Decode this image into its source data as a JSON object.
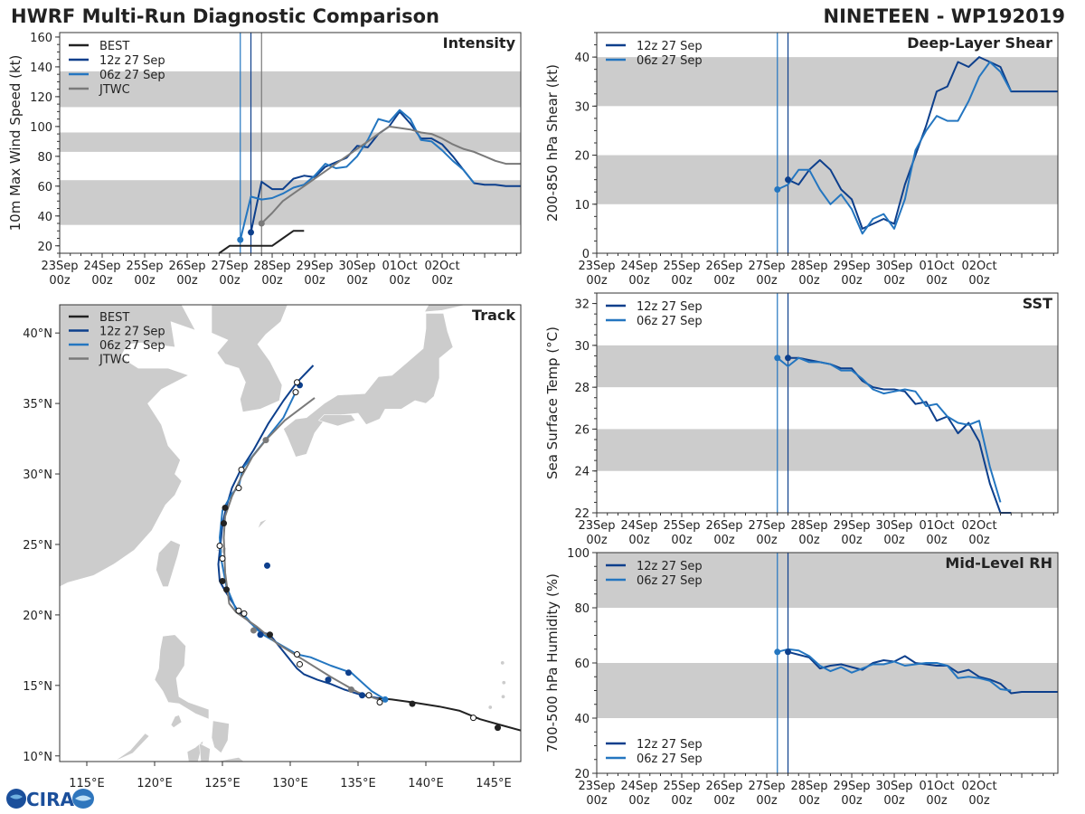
{
  "header": {
    "title_left": "HWRF Multi-Run Diagnostic Comparison",
    "title_right": "NINETEEN - WP192019"
  },
  "logo": {
    "text": "CIRA"
  },
  "colors": {
    "best": "#222222",
    "run12": "#0d3f8c",
    "run06": "#2476c0",
    "jtwc": "#7a7a7a",
    "band": "#cccccc",
    "land": "#cccccc"
  },
  "time_axis": {
    "tick_labels": [
      [
        "23Sep",
        "00z"
      ],
      [
        "24Sep",
        "00z"
      ],
      [
        "25Sep",
        "00z"
      ],
      [
        "26Sep",
        "00z"
      ],
      [
        "27Sep",
        "00z"
      ],
      [
        "28Sep",
        "00z"
      ],
      [
        "29Sep",
        "00z"
      ],
      [
        "30Sep",
        "00z"
      ],
      [
        "01Oct",
        "00z"
      ],
      [
        "02Oct",
        "00z"
      ]
    ],
    "range_days": [
      0,
      10.85
    ],
    "init_lines": {
      "run06": 4.25,
      "run12": 4.5,
      "jtwc": 4.75
    }
  },
  "chart_data": [
    {
      "id": "intensity",
      "type": "line",
      "title": "Intensity",
      "ylabel": "10m Max Wind Speed (kt)",
      "ylim": [
        15,
        163
      ],
      "yticks": [
        20,
        40,
        60,
        80,
        100,
        120,
        140,
        160
      ],
      "bands": [
        [
          34,
          64
        ],
        [
          83,
          96
        ],
        [
          113,
          137
        ]
      ],
      "legend": [
        "BEST",
        "12z 27 Sep",
        "06z 27 Sep",
        "JTWC"
      ],
      "series": [
        {
          "name": "BEST",
          "color": "best",
          "x": [
            3.75,
            4.0,
            4.25,
            4.5,
            4.75,
            5.0,
            5.25,
            5.5,
            5.75
          ],
          "y": [
            15,
            20,
            20,
            20,
            20,
            20,
            25,
            30,
            30
          ]
        },
        {
          "name": "12z 27 Sep",
          "color": "run12",
          "x": [
            4.5,
            4.75,
            5.0,
            5.25,
            5.5,
            5.75,
            6.0,
            6.25,
            6.5,
            6.75,
            7.0,
            7.25,
            7.5,
            7.75,
            8.0,
            8.25,
            8.5,
            8.75,
            9.0,
            9.25,
            9.5,
            9.75,
            10.0,
            10.25,
            10.5,
            10.75,
            10.85
          ],
          "y": [
            29,
            63,
            58,
            58,
            65,
            67,
            66,
            73,
            76,
            79,
            87,
            86,
            95,
            100,
            110,
            102,
            92,
            92,
            88,
            80,
            71,
            62,
            61,
            61,
            60,
            60,
            60
          ]
        },
        {
          "name": "06z 27 Sep",
          "color": "run06",
          "x": [
            4.25,
            4.5,
            4.75,
            5.0,
            5.25,
            5.5,
            5.75,
            6.0,
            6.25,
            6.5,
            6.75,
            7.0,
            7.25,
            7.5,
            7.75,
            8.0,
            8.25,
            8.5,
            8.75,
            9.0,
            9.25,
            9.5,
            9.75
          ],
          "y": [
            24,
            53,
            51,
            52,
            55,
            59,
            61,
            67,
            75,
            72,
            73,
            80,
            91,
            105,
            103,
            111,
            105,
            91,
            90,
            84,
            77,
            71,
            62
          ]
        },
        {
          "name": "JTWC",
          "color": "jtwc",
          "x": [
            4.75,
            5.0,
            5.25,
            5.5,
            5.75,
            6.0,
            6.25,
            6.5,
            6.75,
            7.0,
            7.25,
            7.5,
            7.75,
            8.0,
            8.25,
            8.5,
            8.75,
            9.0,
            9.25,
            9.5,
            9.75,
            10.0,
            10.25,
            10.5,
            10.85
          ],
          "y": [
            35,
            42,
            50,
            55,
            60,
            65,
            70,
            75,
            80,
            85,
            90,
            95,
            100,
            99,
            98,
            96,
            95,
            92,
            88,
            85,
            83,
            80,
            77,
            75,
            75
          ]
        }
      ],
      "markers": [
        {
          "series": "run12",
          "x": 4.5,
          "y": 29
        },
        {
          "series": "run06",
          "x": 4.25,
          "y": 24
        },
        {
          "series": "jtwc",
          "x": 4.75,
          "y": 35
        }
      ]
    },
    {
      "id": "shear",
      "type": "line",
      "title": "Deep-Layer Shear",
      "ylabel": "200-850 hPa Shear (kt)",
      "ylim": [
        0,
        45
      ],
      "yticks": [
        0,
        10,
        20,
        30,
        40
      ],
      "bands": [
        [
          10,
          20
        ],
        [
          30,
          40
        ]
      ],
      "legend": [
        "12z 27 Sep",
        "06z 27 Sep"
      ],
      "series": [
        {
          "name": "12z 27 Sep",
          "color": "run12",
          "x": [
            4.5,
            4.75,
            5.0,
            5.25,
            5.5,
            5.75,
            6.0,
            6.25,
            6.5,
            6.75,
            7.0,
            7.25,
            7.5,
            7.75,
            8.0,
            8.25,
            8.5,
            8.75,
            9.0,
            9.25,
            9.5,
            9.75,
            10.0,
            10.25,
            10.5,
            10.75,
            10.85
          ],
          "y": [
            15,
            14,
            17,
            19,
            17,
            13,
            11,
            5,
            6,
            7,
            6,
            14,
            20,
            26,
            33,
            34,
            39,
            38,
            40,
            39,
            38,
            33,
            33,
            33,
            33,
            33,
            33
          ]
        },
        {
          "name": "06z 27 Sep",
          "color": "run06",
          "x": [
            4.25,
            4.5,
            4.75,
            5.0,
            5.25,
            5.5,
            5.75,
            6.0,
            6.25,
            6.5,
            6.75,
            7.0,
            7.25,
            7.5,
            7.75,
            8.0,
            8.25,
            8.5,
            8.75,
            9.0,
            9.25,
            9.5,
            9.75
          ],
          "y": [
            13,
            14,
            17,
            17,
            13,
            10,
            12,
            9,
            4,
            7,
            8,
            5,
            11,
            21,
            25,
            28,
            27,
            27,
            31,
            36,
            39,
            37,
            33
          ]
        }
      ],
      "markers": [
        {
          "series": "run12",
          "x": 4.5,
          "y": 15
        },
        {
          "series": "run06",
          "x": 4.25,
          "y": 13
        }
      ]
    },
    {
      "id": "sst",
      "type": "line",
      "title": "SST",
      "ylabel": "Sea Surface Temp (°C)",
      "ylim": [
        22,
        32.5
      ],
      "yticks": [
        22,
        24,
        26,
        28,
        30,
        32
      ],
      "bands": [
        [
          24,
          26
        ],
        [
          28,
          30
        ]
      ],
      "legend": [
        "12z 27 Sep",
        "06z 27 Sep"
      ],
      "series": [
        {
          "name": "12z 27 Sep",
          "color": "run12",
          "x": [
            4.5,
            4.75,
            5.0,
            5.25,
            5.5,
            5.75,
            6.0,
            6.25,
            6.5,
            6.75,
            7.0,
            7.25,
            7.5,
            7.75,
            8.0,
            8.25,
            8.5,
            8.75,
            9.0,
            9.25,
            9.5,
            9.75
          ],
          "y": [
            29.4,
            29.4,
            29.3,
            29.2,
            29.1,
            28.9,
            28.9,
            28.3,
            28.0,
            27.9,
            27.9,
            27.8,
            27.2,
            27.3,
            26.4,
            26.6,
            25.8,
            26.3,
            25.4,
            23.4,
            21.8,
            21.8
          ]
        },
        {
          "name": "06z 27 Sep",
          "color": "run06",
          "x": [
            4.25,
            4.5,
            4.75,
            5.0,
            5.25,
            5.5,
            5.75,
            6.0,
            6.25,
            6.5,
            6.75,
            7.0,
            7.25,
            7.5,
            7.75,
            8.0,
            8.25,
            8.5,
            8.75,
            9.0,
            9.25,
            9.5
          ],
          "y": [
            29.4,
            29.0,
            29.4,
            29.2,
            29.2,
            29.1,
            28.8,
            28.8,
            28.4,
            27.9,
            27.7,
            27.8,
            27.9,
            27.8,
            27.1,
            27.2,
            26.6,
            26.3,
            26.2,
            26.4,
            24.2,
            22.5
          ]
        }
      ],
      "markers": [
        {
          "series": "run12",
          "x": 4.5,
          "y": 29.4
        },
        {
          "series": "run06",
          "x": 4.25,
          "y": 29.4
        }
      ]
    },
    {
      "id": "rh",
      "type": "line",
      "title": "Mid-Level RH",
      "ylabel": "700-500 hPa Humidity (%)",
      "ylim": [
        20,
        100
      ],
      "yticks": [
        20,
        40,
        60,
        80,
        100
      ],
      "bands": [
        [
          40,
          60
        ],
        [
          80,
          100
        ]
      ],
      "legend": [
        "12z 27 Sep",
        "06z 27 Sep"
      ],
      "series": [
        {
          "name": "12z 27 Sep",
          "color": "run12",
          "x": [
            4.5,
            4.75,
            5.0,
            5.25,
            5.5,
            5.75,
            6.0,
            6.25,
            6.5,
            6.75,
            7.0,
            7.25,
            7.5,
            7.75,
            8.0,
            8.25,
            8.5,
            8.75,
            9.0,
            9.25,
            9.5,
            9.75,
            10.0,
            10.25,
            10.5,
            10.75,
            10.85
          ],
          "y": [
            64,
            63,
            62,
            58,
            59,
            59.5,
            58.5,
            57.5,
            60,
            61,
            60.5,
            62.5,
            60,
            59.5,
            59,
            59,
            56.5,
            57.5,
            55,
            54,
            52.5,
            49,
            49.5,
            49.5,
            49.5,
            49.5,
            49.5
          ]
        },
        {
          "name": "06z 27 Sep",
          "color": "run06",
          "x": [
            4.25,
            4.5,
            4.75,
            5.0,
            5.25,
            5.5,
            5.75,
            6.0,
            6.25,
            6.5,
            6.75,
            7.0,
            7.25,
            7.5,
            7.75,
            8.0,
            8.25,
            8.5,
            8.75,
            9.0,
            9.25,
            9.5,
            9.75
          ],
          "y": [
            64,
            65,
            64.5,
            62.5,
            59,
            57,
            58.5,
            56.5,
            58,
            59.5,
            59.5,
            60.5,
            59,
            59.5,
            60,
            60,
            59,
            54.5,
            55,
            54.5,
            53.5,
            50.5,
            50
          ]
        }
      ],
      "markers": [
        {
          "series": "run12",
          "x": 4.5,
          "y": 64
        },
        {
          "series": "run06",
          "x": 4.25,
          "y": 64
        }
      ]
    },
    {
      "id": "track",
      "type": "scatter",
      "title": "Track",
      "xlim": [
        113,
        147
      ],
      "ylim": [
        9.6,
        42
      ],
      "xtick_labels": [
        [
          115,
          "115°E"
        ],
        [
          120,
          "120°E"
        ],
        [
          125,
          "125°E"
        ],
        [
          130,
          "130°E"
        ],
        [
          135,
          "135°E"
        ],
        [
          140,
          "140°E"
        ],
        [
          145,
          "145°E"
        ]
      ],
      "ytick_labels": [
        [
          10,
          "10°N"
        ],
        [
          15,
          "15°N"
        ],
        [
          20,
          "20°N"
        ],
        [
          25,
          "25°N"
        ],
        [
          30,
          "30°N"
        ],
        [
          35,
          "35°N"
        ],
        [
          40,
          "40°N"
        ]
      ],
      "legend": [
        "BEST",
        "12z 27 Sep",
        "06z 27 Sep",
        "JTWC"
      ],
      "series": [
        {
          "name": "BEST",
          "color": "best",
          "lon": [
            147,
            145.5,
            144,
            142.5,
            141,
            139,
            137.5,
            136.5
          ],
          "lat": [
            11.8,
            12.2,
            12.6,
            13.2,
            13.5,
            13.8,
            14.0,
            14.1
          ]
        },
        {
          "name": "12z 27 Sep",
          "color": "run12",
          "lon": [
            136.5,
            135.3,
            134,
            133,
            132,
            131,
            130.5,
            128.5,
            127.8,
            126.2,
            125.2,
            124.8,
            124.7,
            125,
            125.3,
            125.7,
            126.3,
            127.3,
            128.4,
            129.5,
            130.5,
            131.7
          ],
          "lat": [
            14.1,
            14.3,
            14.7,
            15.1,
            15.4,
            15.8,
            16.2,
            18.6,
            18.8,
            20.2,
            21.7,
            22.4,
            23.6,
            26.4,
            27.7,
            29.0,
            30.2,
            31.7,
            33.6,
            35.2,
            36.5,
            37.7
          ]
        },
        {
          "name": "06z 27 Sep",
          "color": "run06",
          "lon": [
            137,
            136,
            134.5,
            133,
            131.5,
            130.5,
            128,
            127.5,
            126.5,
            126,
            125.3,
            124.9,
            124.8,
            125,
            125.7,
            126.2,
            126.5,
            127.5,
            128.5,
            129.5,
            130.4
          ],
          "lat": [
            14.0,
            14.6,
            15.9,
            16.4,
            17.0,
            17.2,
            18.6,
            19.0,
            20.1,
            20.4,
            22.0,
            24.0,
            25.5,
            27.4,
            28.6,
            29.1,
            30.4,
            31.6,
            32.8,
            34.0,
            35.8
          ]
        },
        {
          "name": "JTWC",
          "color": "jtwc",
          "lon": [
            136.5,
            135,
            133,
            131,
            129,
            127.5,
            126,
            125.5,
            125.2,
            125.1,
            125.2,
            125.7,
            126.4,
            127.2,
            128.2,
            129.6,
            131.8
          ],
          "lat": [
            14.0,
            14.5,
            15.6,
            16.8,
            18.0,
            19.2,
            20.2,
            20.8,
            23,
            25.5,
            27.0,
            28.4,
            29.8,
            31.2,
            32.4,
            33.8,
            35.4
          ]
        }
      ],
      "filled_dots": [
        {
          "color": "best",
          "lon": [
            145.3,
            139,
            128.5,
            125.3,
            125,
            125.1,
            125.2
          ],
          "lat": [
            12.0,
            13.7,
            18.6,
            21.8,
            22.4,
            26.5,
            27.6
          ]
        },
        {
          "color": "run12",
          "lon": [
            135.3,
            132.8,
            128.3,
            127.8
          ],
          "lat": [
            14.3,
            15.4,
            23.5,
            18.6
          ]
        },
        {
          "color": "run06",
          "lon": [
            137
          ],
          "lat": [
            14.0
          ]
        },
        {
          "color": "run12",
          "lon": [
            134.3,
            130.7
          ],
          "lat": [
            15.9,
            36.3
          ]
        }
      ],
      "open_dots": {
        "lon": [
          143.5,
          136.6,
          135.8,
          130.7,
          130.5,
          126.6,
          126.2,
          125,
          124.8,
          126.2,
          126.4,
          130.4,
          130.5
        ],
        "lat": [
          12.7,
          13.8,
          14.3,
          16.5,
          17.2,
          20.1,
          20.3,
          24.0,
          24.9,
          29.0,
          30.3,
          35.8,
          36.5
        ]
      },
      "jtwc_dots": {
        "lon": [
          134.5,
          128.2,
          127.3
        ],
        "lat": [
          14.7,
          32.4,
          18.9
        ]
      }
    }
  ]
}
